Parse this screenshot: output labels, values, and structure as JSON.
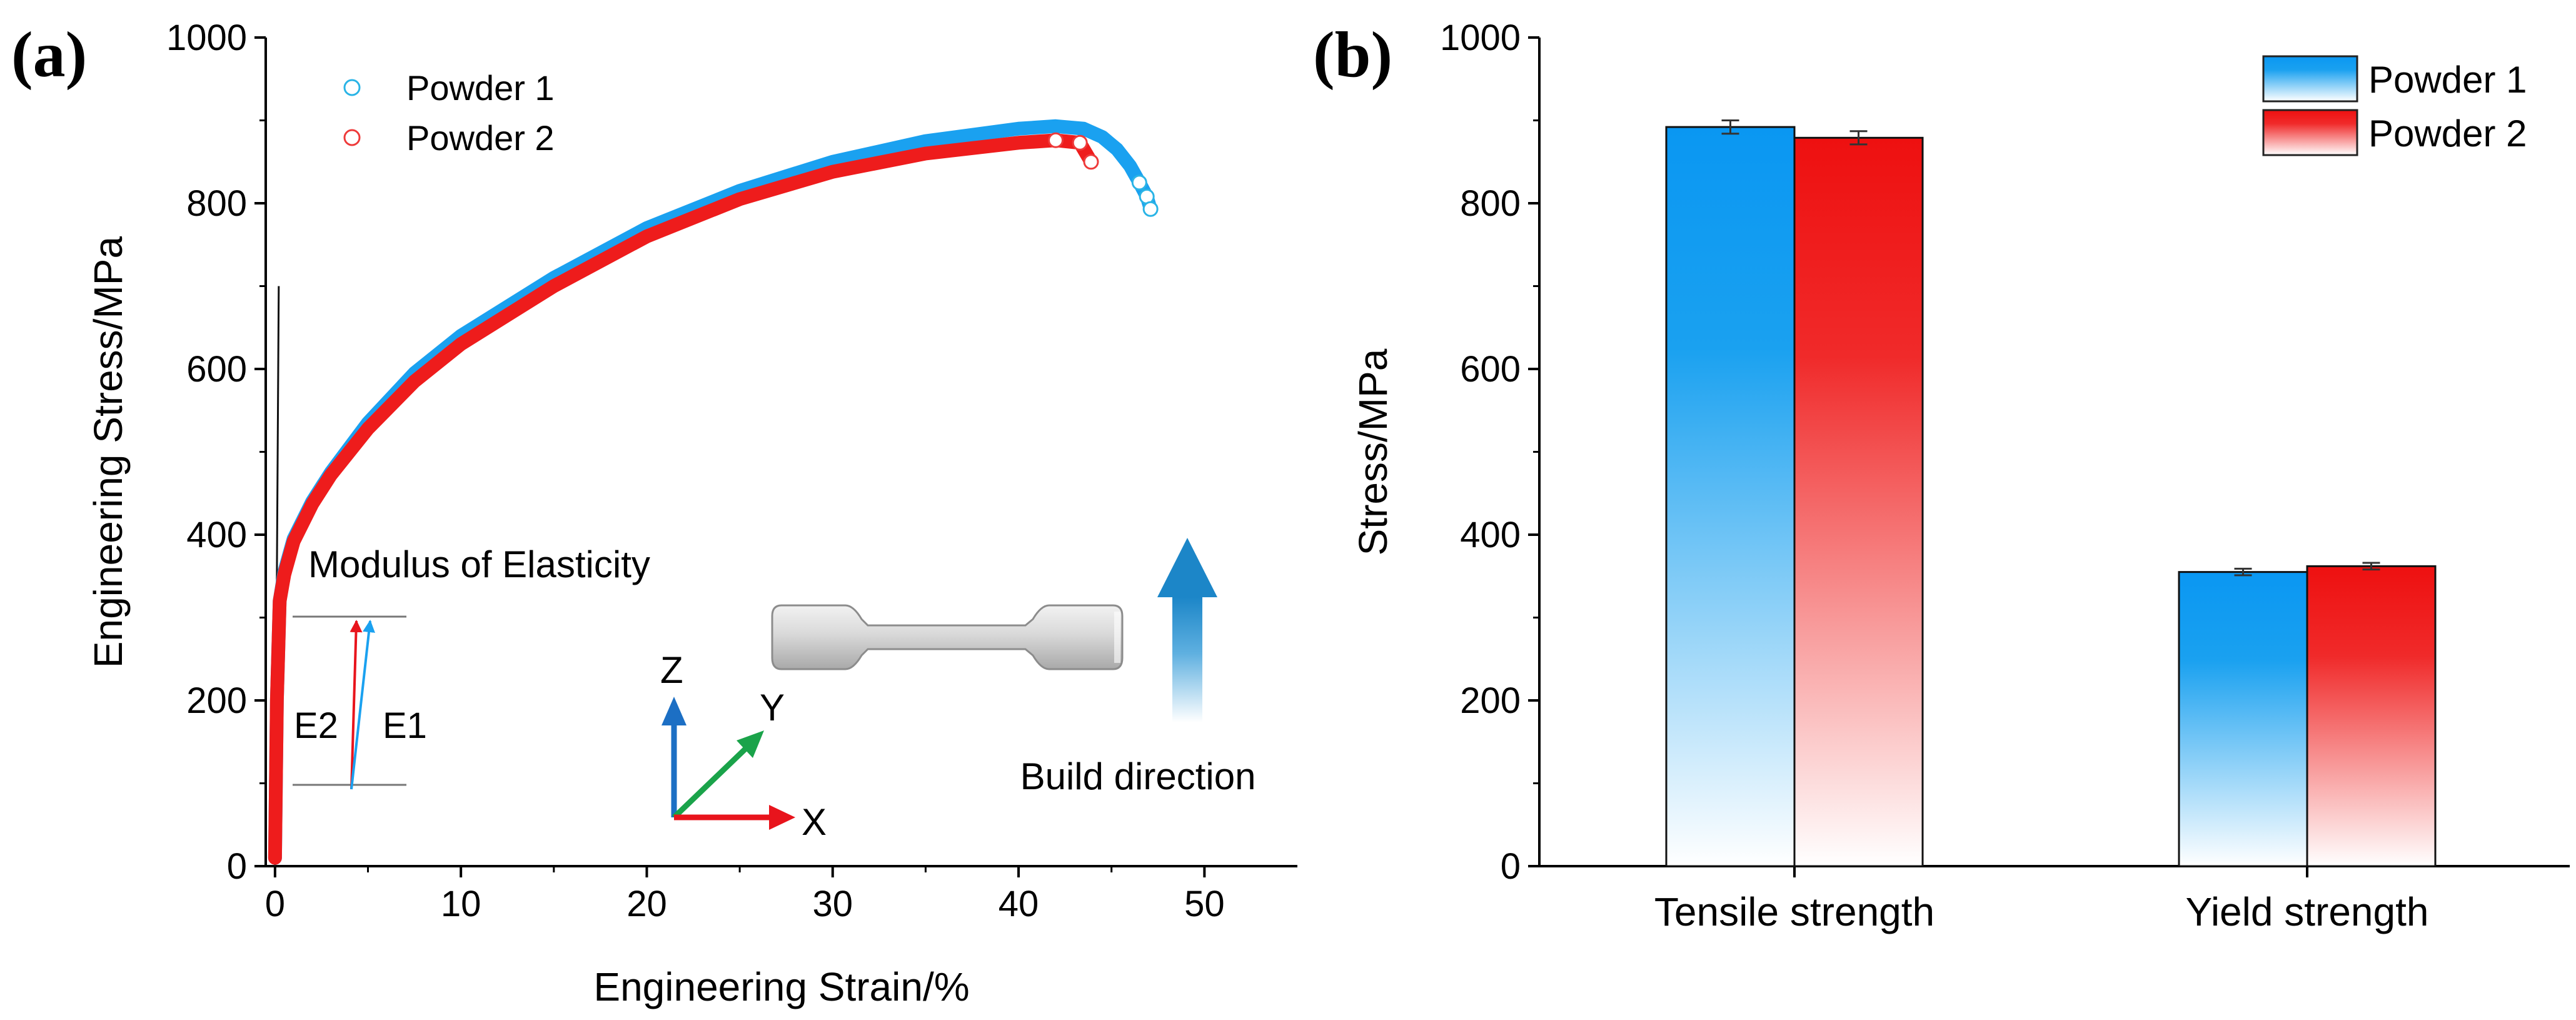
{
  "panel_a": {
    "tag": "(a)",
    "ylabel": "Engineering Stress/MPa",
    "xlabel": "Engineering Strain/%",
    "annotation_modulus": "Modulus of Elasticity",
    "annotation_e2": "E2",
    "annotation_e1": "E1",
    "axis_z": "Z",
    "axis_y": "Y",
    "axis_x": "X",
    "build_direction": "Build direction"
  },
  "panel_b": {
    "tag": "(b)",
    "ylabel": "Stress/MPa"
  },
  "colors": {
    "powder1": "#1aa1f0",
    "powder1_marker": "#2ab4e6",
    "powder2": "#ee1c1c",
    "powder2_marker": "#ee3a3a",
    "axis": "#000000"
  },
  "chart_data": [
    {
      "type": "line",
      "title": "",
      "xlabel": "Engineering Strain/%",
      "ylabel": "Engineering Stress/MPa",
      "xlim": [
        -0.5,
        55
      ],
      "ylim": [
        0,
        1000
      ],
      "xticks": [
        0,
        10,
        20,
        30,
        40,
        50
      ],
      "yticks": [
        0,
        200,
        400,
        600,
        800,
        1000
      ],
      "legend": [
        "Powder 1",
        "Powder 2"
      ],
      "legend_position": "top-left",
      "series": [
        {
          "name": "Powder 1",
          "x": [
            0,
            0.1,
            0.25,
            0.5,
            1,
            2,
            3,
            5,
            7.5,
            10,
            15,
            20,
            25,
            30,
            35,
            40,
            42,
            43.5,
            44.5,
            45.3,
            46,
            46.5,
            46.9,
            47.1
          ],
          "y": [
            10,
            200,
            320,
            355,
            395,
            440,
            475,
            535,
            595,
            640,
            710,
            770,
            815,
            850,
            875,
            890,
            893,
            890,
            880,
            865,
            845,
            825,
            808,
            793
          ]
        },
        {
          "name": "Powder 2",
          "x": [
            0,
            0.1,
            0.25,
            0.5,
            1,
            2,
            3,
            5,
            7.5,
            10,
            15,
            20,
            25,
            30,
            35,
            40,
            42,
            43.3,
            43.9
          ],
          "y": [
            10,
            200,
            320,
            352,
            392,
            437,
            472,
            528,
            585,
            630,
            700,
            760,
            805,
            838,
            860,
            873,
            876,
            873,
            850
          ]
        }
      ],
      "elastic_line": {
        "x": [
          0,
          0.2
        ],
        "y": [
          0,
          700
        ]
      }
    },
    {
      "type": "bar",
      "title": "",
      "xlabel": "",
      "ylabel": "Stress/MPa",
      "ylim": [
        0,
        1000
      ],
      "yticks": [
        0,
        200,
        400,
        600,
        800,
        1000
      ],
      "categories": [
        "Tensile strength",
        "Yield strength"
      ],
      "legend_position": "top-right",
      "series": [
        {
          "name": "Powder 1",
          "values": [
            892,
            355
          ],
          "errors": [
            8,
            4
          ]
        },
        {
          "name": "Powder 2",
          "values": [
            879,
            362
          ],
          "errors": [
            8,
            4
          ]
        }
      ]
    }
  ]
}
